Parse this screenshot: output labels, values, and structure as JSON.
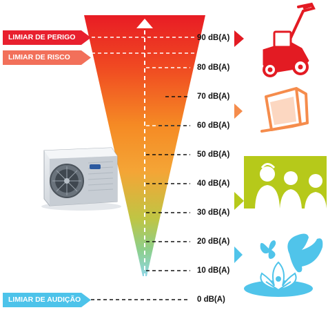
{
  "thresholds": {
    "danger": "LIMIAR DE PERIGO",
    "risk": "LIMIAR DE RISCO",
    "hearing": "LIMIAR DE AUDIÇÃO"
  },
  "levels": [
    "90 dB(A)",
    "80 dB(A)",
    "70 dB(A)",
    "60 dB(A)",
    "50 dB(A)",
    "40 dB(A)",
    "30 dB(A)",
    "20 dB(A)",
    "10 dB(A)",
    "0 dB(A)"
  ],
  "colors": {
    "danger": "#e8202e",
    "risk": "#f2705a",
    "hearing": "#4dc3ea",
    "mower": "#e31b23",
    "tv": "#f58c4c",
    "people": "#b6c91a",
    "nature": "#50c4ea"
  },
  "icons": [
    "air-conditioner-unit-icon",
    "lawn-mower-icon",
    "television-icon",
    "people-talking-icon",
    "butterflies-icon",
    "water-lily-icon"
  ]
}
